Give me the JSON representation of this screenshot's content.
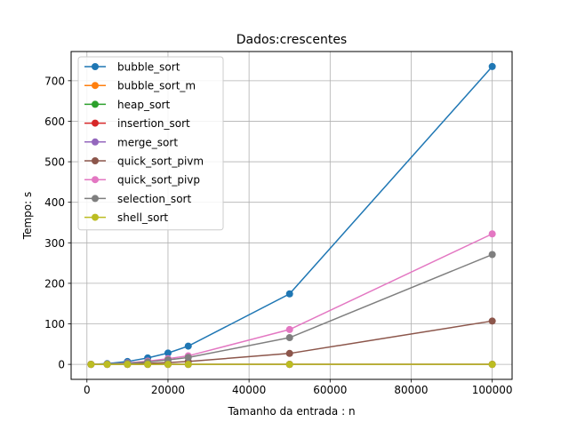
{
  "chart_data": {
    "type": "line",
    "title": "Dados:crescentes",
    "xlabel": "Tamanho da entrada : n",
    "ylabel": "Tempo: s",
    "xlim": [
      -3900,
      104900
    ],
    "ylim": [
      -37,
      772
    ],
    "xticks": [
      0,
      20000,
      40000,
      60000,
      80000,
      100000
    ],
    "yticks": [
      0,
      100,
      200,
      300,
      400,
      500,
      600,
      700
    ],
    "grid": true,
    "legend_position": "top-left",
    "x": [
      1000,
      5000,
      10000,
      15000,
      20000,
      25000,
      50000,
      100000
    ],
    "series": [
      {
        "name": "bubble_sort",
        "color": "#1f77b4",
        "values": [
          0.1,
          1.8,
          7.0,
          16.0,
          28.0,
          45.0,
          174.0,
          735.0
        ]
      },
      {
        "name": "bubble_sort_m",
        "color": "#ff7f0e",
        "values": [
          0,
          0,
          0,
          0,
          0,
          0,
          0,
          0
        ]
      },
      {
        "name": "heap_sort",
        "color": "#2ca02c",
        "values": [
          0,
          0,
          0,
          0,
          0,
          0,
          0,
          0.1
        ]
      },
      {
        "name": "insertion_sort",
        "color": "#d62728",
        "values": [
          0,
          0,
          0,
          0,
          0,
          0,
          0,
          0
        ]
      },
      {
        "name": "merge_sort",
        "color": "#9467bd",
        "values": [
          0,
          0,
          0,
          0,
          0,
          0,
          0,
          0.1
        ]
      },
      {
        "name": "quick_sort_pivm",
        "color": "#8c564b",
        "values": [
          0,
          0.3,
          1.1,
          2.5,
          4.5,
          7.0,
          27.0,
          107.0
        ]
      },
      {
        "name": "quick_sort_pivp",
        "color": "#e377c2",
        "values": [
          0.1,
          0.9,
          3.5,
          8.0,
          14.0,
          21.0,
          86.0,
          322.0
        ]
      },
      {
        "name": "selection_sort",
        "color": "#7f7f7f",
        "values": [
          0.1,
          0.7,
          2.7,
          6.0,
          11.0,
          17.0,
          66.0,
          271.0
        ]
      },
      {
        "name": "shell_sort",
        "color": "#bcbd22",
        "values": [
          0,
          0,
          0,
          0,
          0,
          0,
          0,
          0
        ]
      }
    ]
  }
}
